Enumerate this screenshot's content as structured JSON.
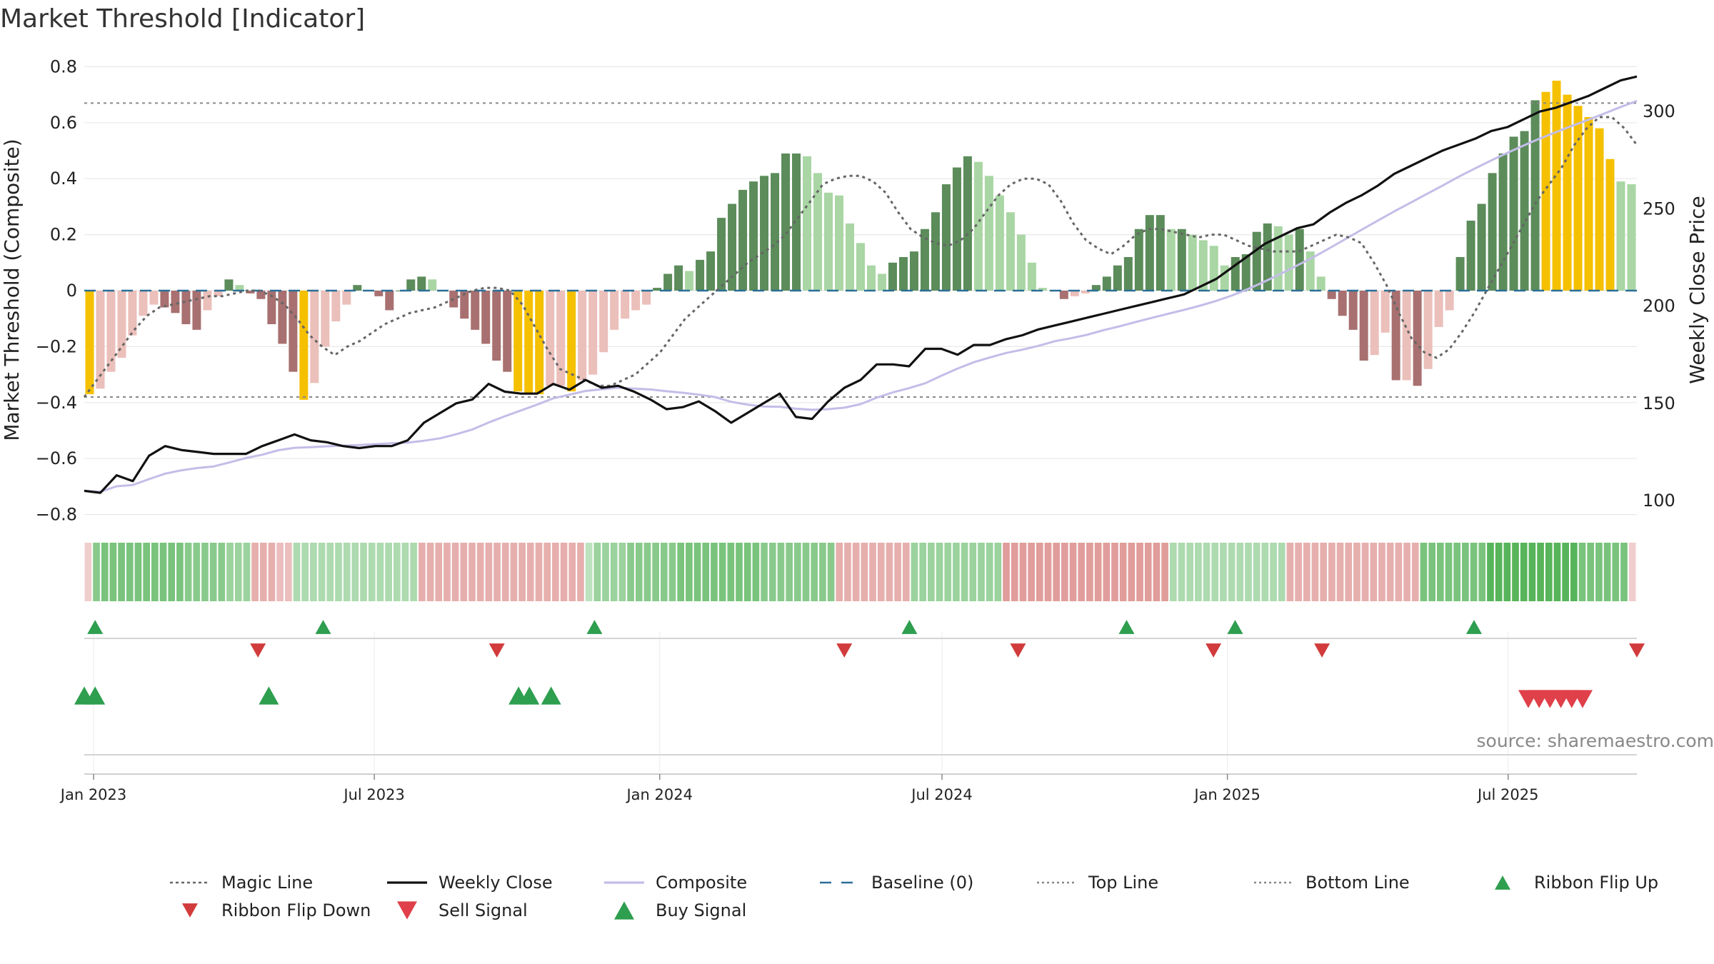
{
  "chart_data": {
    "type": "bar",
    "title": "Market Threshold [Indicator]",
    "ylabel": "Market Threshold (Composite)",
    "y2label": "Weekly Close Price",
    "ylim": [
      -0.8,
      0.8
    ],
    "y2lim": [
      100,
      320
    ],
    "yticks": [
      0.8,
      0.6,
      0.4,
      0.2,
      0,
      -0.2,
      -0.4,
      -0.6,
      -0.8
    ],
    "ytick_labels": [
      "0.8",
      "0.6",
      "0.4",
      "0.2",
      "0",
      "−0.2",
      "−0.4",
      "−0.6",
      "−0.8"
    ],
    "y2ticks": [
      300,
      250,
      200,
      150,
      100
    ],
    "y2tick_labels": [
      "300",
      "250",
      "200",
      "150",
      "100"
    ],
    "x_start": "2022-12-26",
    "x_end": "2025-09-22",
    "xticks": [
      "2023-01-01",
      "2023-07-01",
      "2024-01-01",
      "2024-07-01",
      "2025-01-01",
      "2025-07-01"
    ],
    "xtick_labels": [
      "Jan 2023",
      "Jul 2023",
      "Jan 2024",
      "Jul 2024",
      "Jan 2025",
      "Jul 2025"
    ],
    "top_line": 0.67,
    "bottom_line": -0.38,
    "baseline": 0,
    "composite_bars": [
      -0.37,
      -0.35,
      -0.29,
      -0.24,
      -0.16,
      -0.09,
      -0.05,
      -0.06,
      -0.08,
      -0.12,
      -0.14,
      -0.07,
      -0.02,
      0.04,
      0.02,
      -0.01,
      -0.03,
      -0.12,
      -0.19,
      -0.29,
      -0.39,
      -0.33,
      -0.2,
      -0.11,
      -0.05,
      0.02,
      0,
      -0.02,
      -0.07,
      0,
      0.04,
      0.05,
      0.04,
      0,
      -0.06,
      -0.1,
      -0.14,
      -0.19,
      -0.25,
      -0.29,
      -0.36,
      -0.37,
      -0.37,
      -0.34,
      -0.34,
      -0.36,
      -0.32,
      -0.3,
      -0.22,
      -0.14,
      -0.1,
      -0.07,
      -0.05,
      0.01,
      0.06,
      0.09,
      0.07,
      0.11,
      0.14,
      0.26,
      0.31,
      0.36,
      0.39,
      0.41,
      0.42,
      0.49,
      0.49,
      0.48,
      0.42,
      0.35,
      0.34,
      0.24,
      0.17,
      0.09,
      0.06,
      0.1,
      0.12,
      0.14,
      0.22,
      0.28,
      0.38,
      0.44,
      0.48,
      0.46,
      0.41,
      0.34,
      0.28,
      0.2,
      0.1,
      0.01,
      0,
      -0.03,
      -0.02,
      -0.01,
      0.02,
      0.05,
      0.09,
      0.12,
      0.22,
      0.27,
      0.27,
      0.22,
      0.22,
      0.2,
      0.18,
      0.16,
      0.09,
      0.12,
      0.13,
      0.21,
      0.24,
      0.23,
      0.2,
      0.22,
      0.14,
      0.05,
      -0.03,
      -0.09,
      -0.14,
      -0.25,
      -0.23,
      -0.15,
      -0.32,
      -0.32,
      -0.34,
      -0.28,
      -0.13,
      -0.07,
      0.12,
      0.25,
      0.31,
      0.42,
      0.49,
      0.55,
      0.57,
      0.68,
      0.71,
      0.75,
      0.7,
      0.66,
      0.62,
      0.58,
      0.47,
      0.39,
      0.38
    ],
    "bar_highlight_indices": [
      0,
      20,
      40,
      41,
      42,
      45,
      136,
      137,
      138,
      139,
      140,
      141,
      142
    ],
    "magic_line": [
      -0.38,
      -0.32,
      -0.26,
      -0.2,
      -0.14,
      -0.09,
      -0.06,
      -0.05,
      -0.04,
      -0.03,
      -0.02,
      -0.02,
      -0.01,
      0,
      0,
      -0.02,
      -0.05,
      -0.1,
      -0.16,
      -0.2,
      -0.23,
      -0.2,
      -0.18,
      -0.15,
      -0.12,
      -0.1,
      -0.08,
      -0.07,
      -0.06,
      -0.04,
      -0.02,
      0,
      0.01,
      0.01,
      0,
      -0.05,
      -0.13,
      -0.21,
      -0.28,
      -0.3,
      -0.32,
      -0.34,
      -0.34,
      -0.32,
      -0.3,
      -0.26,
      -0.22,
      -0.16,
      -0.1,
      -0.06,
      -0.02,
      0.02,
      0.06,
      0.1,
      0.13,
      0.16,
      0.2,
      0.26,
      0.32,
      0.38,
      0.4,
      0.41,
      0.41,
      0.39,
      0.35,
      0.28,
      0.22,
      0.19,
      0.17,
      0.16,
      0.18,
      0.22,
      0.28,
      0.34,
      0.38,
      0.4,
      0.4,
      0.38,
      0.32,
      0.24,
      0.18,
      0.15,
      0.13,
      0.16,
      0.2,
      0.22,
      0.22,
      0.21,
      0.2,
      0.19,
      0.2,
      0.2,
      0.18,
      0.16,
      0.15,
      0.14,
      0.14,
      0.14,
      0.16,
      0.18,
      0.2,
      0.19,
      0.17,
      0.1,
      0.02,
      -0.08,
      -0.17,
      -0.22,
      -0.24,
      -0.21,
      -0.15,
      -0.08,
      0,
      0.08,
      0.16,
      0.24,
      0.32,
      0.38,
      0.44,
      0.52,
      0.58,
      0.62,
      0.62,
      0.58,
      0.52
    ],
    "weekly_close": [
      105,
      104,
      113,
      110,
      123,
      128,
      126,
      125,
      124,
      124,
      124,
      128,
      131,
      134,
      131,
      130,
      128,
      127,
      128,
      128,
      131,
      140,
      145,
      150,
      152,
      160,
      156,
      155,
      155,
      160,
      157,
      162,
      158,
      159,
      156,
      152,
      147,
      148,
      151,
      146,
      140,
      145,
      150,
      155,
      143,
      142,
      151,
      158,
      162,
      170,
      170,
      169,
      178,
      178,
      175,
      180,
      180,
      183,
      185,
      188,
      190,
      192,
      194,
      196,
      198,
      200,
      202,
      204,
      206,
      210,
      214,
      220,
      226,
      232,
      236,
      240,
      242,
      248,
      253,
      257,
      262,
      268,
      272,
      276,
      280,
      283,
      286,
      290,
      292,
      296,
      300,
      302,
      305,
      308,
      312,
      316,
      318
    ],
    "ribbon_levels": [
      -0.1,
      0.5,
      0.6,
      0.6,
      0.6,
      0.6,
      0.6,
      0.6,
      0.6,
      0.6,
      0.6,
      0.6,
      0.5,
      0.5,
      0.5,
      0.5,
      0.5,
      0.4,
      0.4,
      0.4,
      -0.3,
      -0.3,
      -0.3,
      -0.2,
      -0.2,
      0.3,
      0.3,
      0.3,
      0.3,
      0.3,
      0.3,
      0.3,
      0.3,
      0.3,
      0.3,
      0.3,
      0.3,
      0.3,
      0.3,
      0.3,
      -0.3,
      -0.3,
      -0.3,
      -0.3,
      -0.3,
      -0.3,
      -0.3,
      -0.3,
      -0.3,
      -0.3,
      -0.3,
      -0.3,
      -0.3,
      -0.3,
      -0.3,
      -0.3,
      -0.3,
      -0.3,
      -0.3,
      -0.3,
      0.2,
      0.4,
      0.4,
      0.4,
      0.4,
      0.5,
      0.5,
      0.5,
      0.5,
      0.5,
      0.5,
      0.6,
      0.6,
      0.6,
      0.6,
      0.6,
      0.6,
      0.6,
      0.6,
      0.6,
      0.6,
      0.5,
      0.5,
      0.5,
      0.5,
      0.5,
      0.5,
      0.5,
      0.5,
      0.5,
      -0.3,
      -0.3,
      -0.3,
      -0.3,
      -0.3,
      -0.3,
      -0.3,
      -0.3,
      -0.3,
      0.4,
      0.4,
      0.4,
      0.4,
      0.4,
      0.4,
      0.4,
      0.4,
      0.4,
      0.4,
      0.4,
      -0.4,
      -0.4,
      -0.4,
      -0.4,
      -0.4,
      -0.4,
      -0.4,
      -0.4,
      -0.4,
      -0.4,
      -0.4,
      -0.4,
      -0.4,
      -0.4,
      -0.4,
      -0.4,
      -0.4,
      -0.4,
      -0.4,
      -0.4,
      0.3,
      0.3,
      0.3,
      0.3,
      0.3,
      0.3,
      0.3,
      0.3,
      0.3,
      0.3,
      0.3,
      0.3,
      0.3,
      0.3,
      -0.3,
      -0.3,
      -0.3,
      -0.3,
      -0.3,
      -0.3,
      -0.3,
      -0.3,
      -0.3,
      -0.3,
      -0.3,
      -0.3,
      -0.3,
      -0.3,
      -0.3,
      -0.3,
      0.6,
      0.6,
      0.6,
      0.6,
      0.6,
      0.6,
      0.6,
      0.6,
      0.8,
      0.8,
      0.8,
      0.8,
      0.8,
      0.8,
      0.8,
      0.8,
      0.8,
      0.8,
      0.8,
      0.6,
      0.6,
      0.6,
      0.6,
      0.6,
      0.6,
      -0.1
    ],
    "ribbon_flip_up": [
      "2023-01-02",
      "2023-05-29",
      "2023-11-20",
      "2024-06-10",
      "2024-10-28",
      "2025-01-06",
      "2025-06-09"
    ],
    "ribbon_flip_down": [
      "2023-04-17",
      "2023-09-18",
      "2024-04-29",
      "2024-08-19",
      "2024-12-23",
      "2025-03-03",
      "2025-09-22"
    ],
    "buy_signals": [
      "2022-12-26",
      "2023-01-02",
      "2023-04-24",
      "2023-10-02",
      "2023-10-09",
      "2023-10-23"
    ],
    "sell_signals": [
      "2025-07-14",
      "2025-07-21",
      "2025-07-28",
      "2025-08-04",
      "2025-08-11",
      "2025-08-18"
    ],
    "legend_position": "bottom",
    "legend": [
      {
        "label": "Magic Line",
        "kind": "dotted-line",
        "color": "#666666"
      },
      {
        "label": "Weekly Close",
        "kind": "solid-line",
        "color": "#111111"
      },
      {
        "label": "Composite",
        "kind": "solid-line",
        "color": "#c3bde8"
      },
      {
        "label": "Baseline (0)",
        "kind": "dashed-line",
        "color": "#2a6f97"
      },
      {
        "label": "Top Line",
        "kind": "fine-dotted-line",
        "color": "#888888"
      },
      {
        "label": "Bottom Line",
        "kind": "fine-dotted-line",
        "color": "#888888"
      },
      {
        "label": "Ribbon Flip Up",
        "kind": "triangle-up",
        "color": "#2e9e4f"
      },
      {
        "label": "Ribbon Flip Down",
        "kind": "triangle-down",
        "color": "#d23b3b"
      },
      {
        "label": "Sell Signal",
        "kind": "triangle-down",
        "color": "#e0404a"
      },
      {
        "label": "Buy Signal",
        "kind": "triangle-up",
        "color": "#2e9e4f"
      }
    ],
    "source": "source: sharemaestro.com"
  },
  "colors": {
    "bar_pos_dark": "#5b8c5a",
    "bar_pos_light": "#a9d6a4",
    "bar_neg_dark": "#a87070",
    "bar_neg_light": "#ebbfba",
    "bar_highlight": "#f5c000",
    "ribbon_pos": "#4caf50",
    "ribbon_neg": "#c8504c",
    "flip_up": "#2e9e4f",
    "flip_down": "#d23b3b",
    "sell": "#e0404a",
    "buy": "#2e9e4f",
    "magic_line": "#666666",
    "weekly_close": "#111111",
    "composite_line": "#c3bde8",
    "baseline": "#2a6f97",
    "threshold_lines": "#888888",
    "grid": "#e8e8e8"
  }
}
